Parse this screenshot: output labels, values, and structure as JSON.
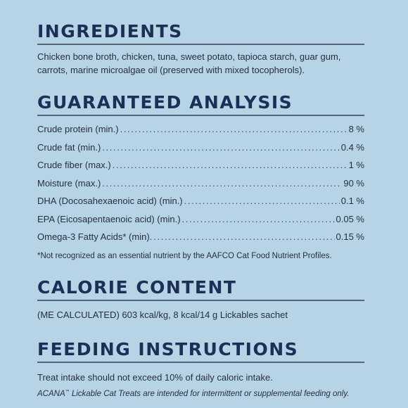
{
  "ingredients": {
    "heading": "INGREDIENTS",
    "text": "Chicken bone broth, chicken, tuna, sweet potato, tapioca starch, guar gum, carrots, marine microalgae oil (preserved with mixed tocopherols)."
  },
  "analysis": {
    "heading": "GUARANTEED ANALYSIS",
    "rows": [
      {
        "label": "Crude protein (min.)",
        "value": "8 %"
      },
      {
        "label": "Crude fat (min.)",
        "value": "0.4 %"
      },
      {
        "label": "Crude fiber (max.)",
        "value": "1 %"
      },
      {
        "label": "Moisture (max.)",
        "value": "90 %"
      },
      {
        "label": "DHA (Docosahexaenoic acid) (min.)",
        "value": "0.1 %"
      },
      {
        "label": "EPA (Eicosapentaenoic acid) (min.)",
        "value": "0.05 %"
      },
      {
        "label": "Omega-3 Fatty Acids* (min).",
        "value": "0.15 %"
      }
    ],
    "footnote": "*Not recognized as an essential nutrient by the AAFCO Cat Food Nutrient Profiles."
  },
  "calorie": {
    "heading": "CALORIE CONTENT",
    "text": "(ME CALCULATED) 603 kcal/kg, 8 kcal/14 g Lickables sachet"
  },
  "feeding": {
    "heading": "FEEDING INSTRUCTIONS",
    "text": "Treat intake should not exceed 10% of daily caloric intake.",
    "note_brand": "ACANA",
    "note_tm": "™",
    "note_rest": " Lickable Cat Treats are intended for intermittent or supplemental feeding only."
  },
  "colors": {
    "background": "#b7d3e6",
    "heading": "#1c2f57",
    "text": "#26303d",
    "rule": "#566678"
  }
}
